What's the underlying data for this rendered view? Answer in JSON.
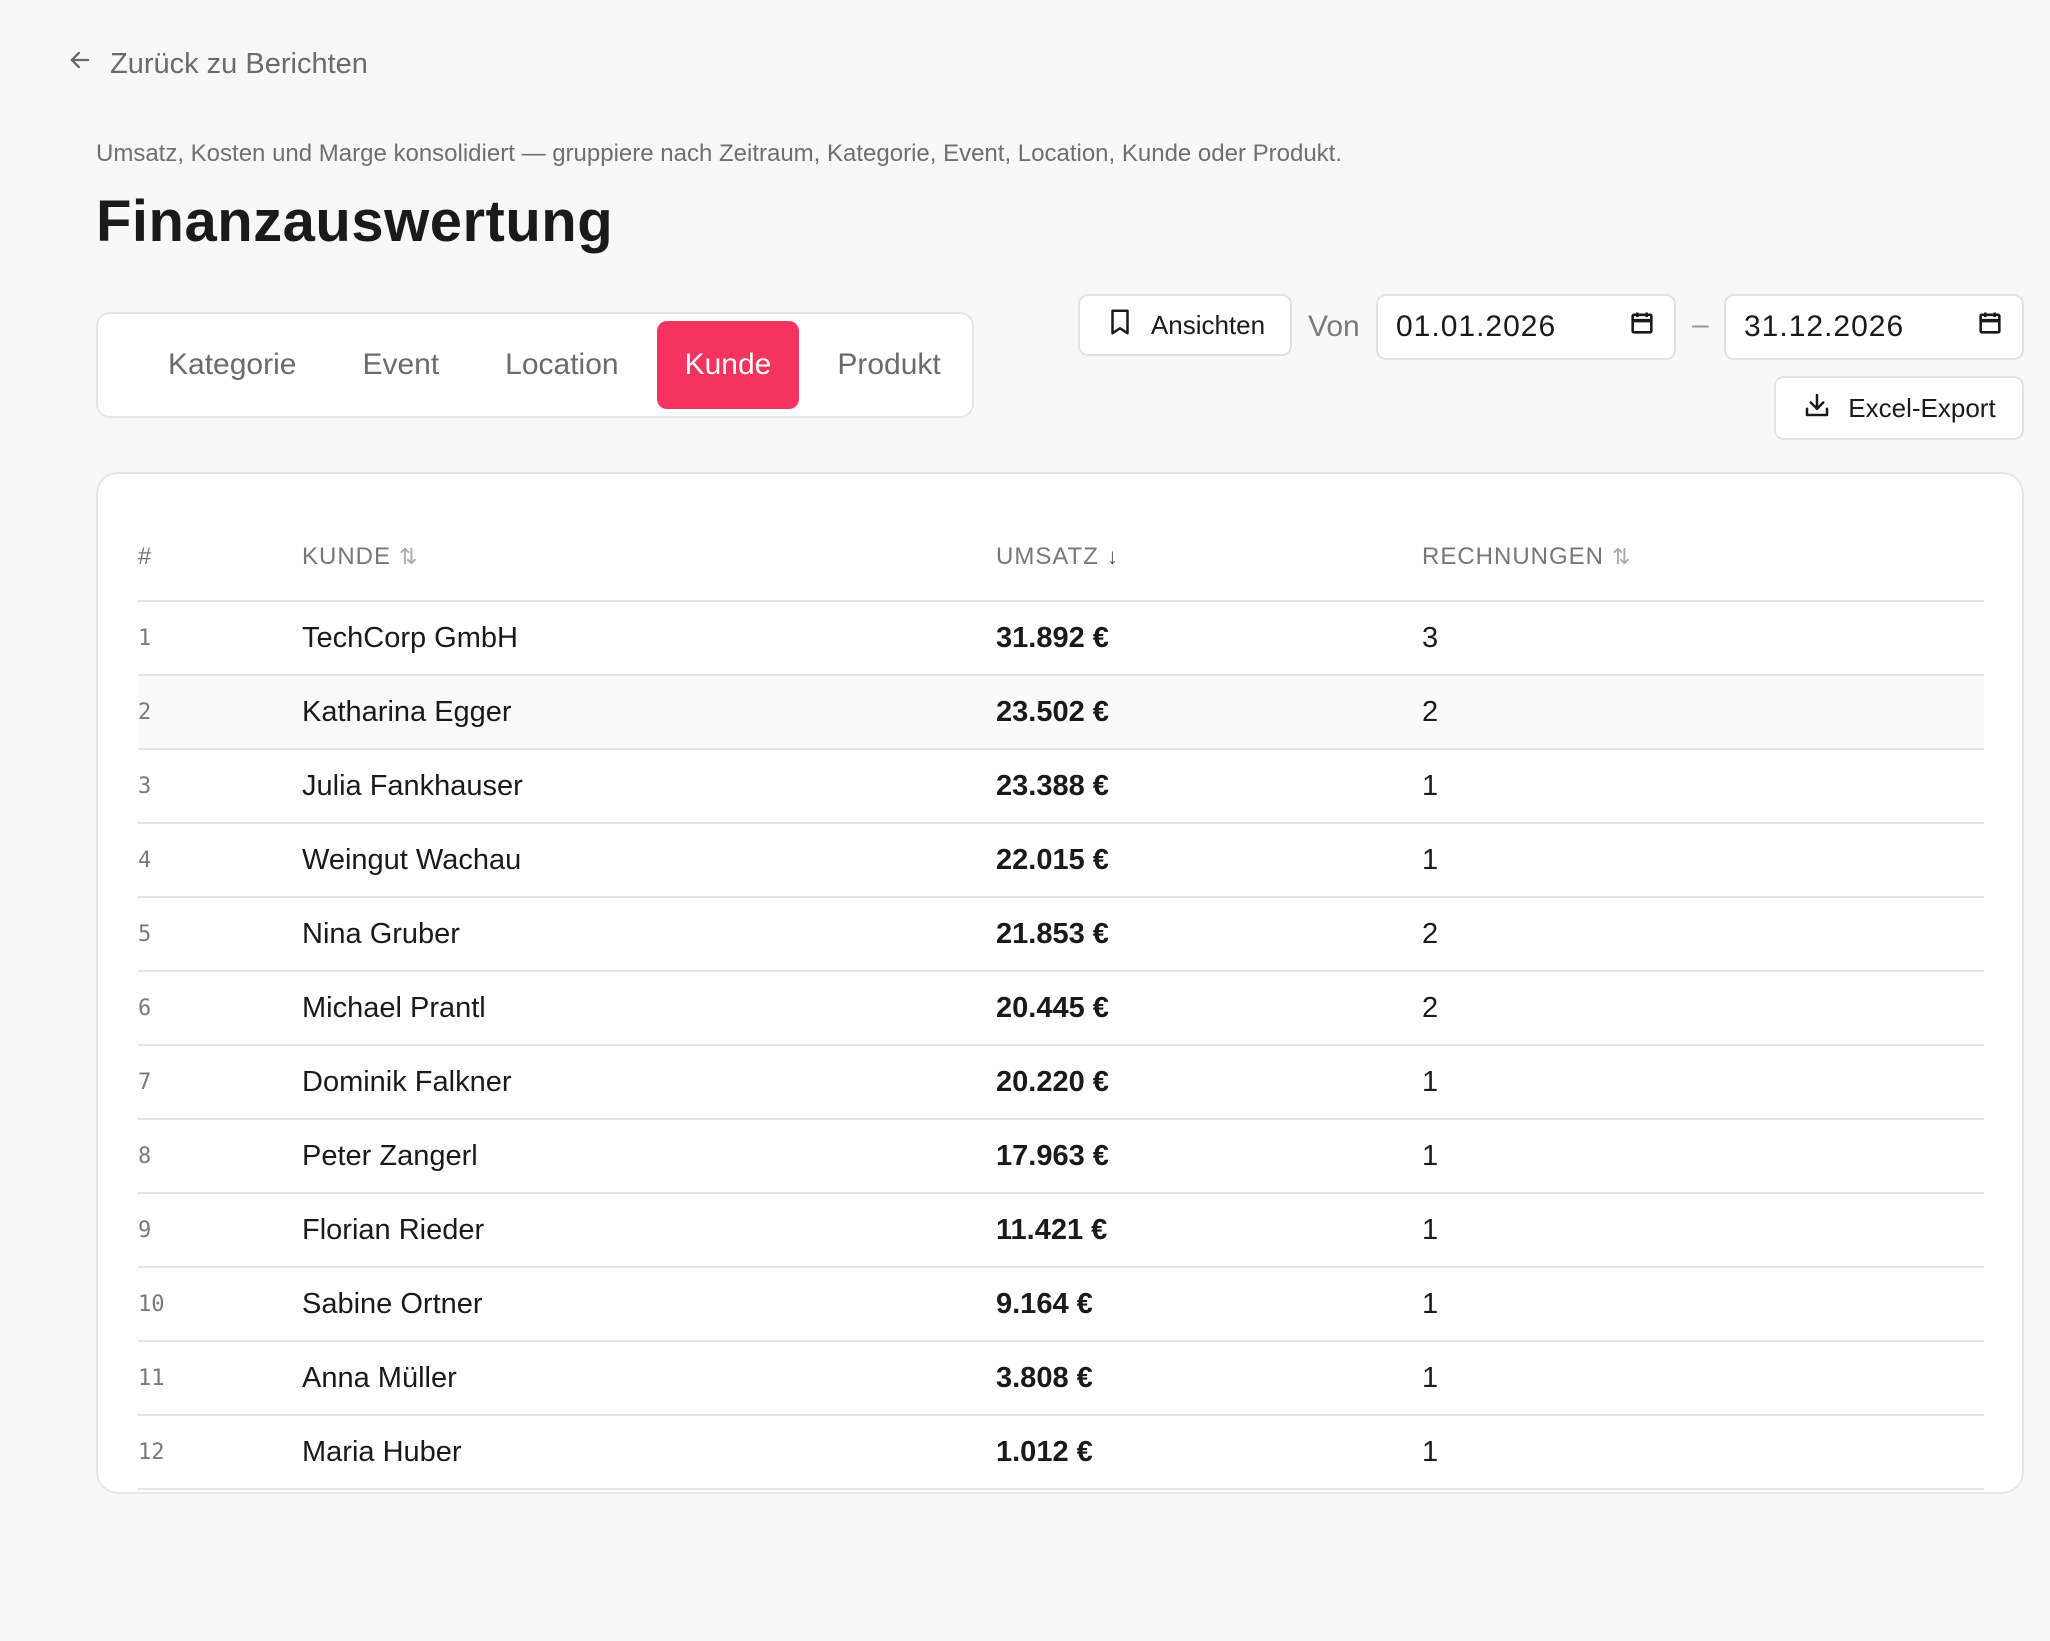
{
  "back": {
    "label": "Zurück zu Berichten"
  },
  "header": {
    "subtitle": "Umsatz, Kosten und Marge konsolidiert — gruppiere nach Zeitraum, Kategorie, Event, Location, Kunde oder Produkt.",
    "title": "Finanzauswertung"
  },
  "tabs": [
    {
      "label": "Kategorie",
      "active": false
    },
    {
      "label": "Event",
      "active": false
    },
    {
      "label": "Location",
      "active": false
    },
    {
      "label": "Kunde",
      "active": true
    },
    {
      "label": "Produkt",
      "active": false
    }
  ],
  "toolbar": {
    "views_label": "Ansichten",
    "von_label": "Von",
    "date_from": "01.01.2026",
    "date_separator": "–",
    "date_to": "31.12.2026",
    "export_label": "Excel-Export"
  },
  "colors": {
    "accent": "#f5335f"
  },
  "table": {
    "columns": [
      {
        "label": "#",
        "sort": "none"
      },
      {
        "label": "KUNDE",
        "sort": "sortable"
      },
      {
        "label": "UMSATZ",
        "sort": "desc"
      },
      {
        "label": "RECHNUNGEN",
        "sort": "sortable"
      }
    ],
    "rows": [
      {
        "n": "1",
        "kunde": "TechCorp GmbH",
        "umsatz": "31.892 €",
        "rechnungen": "3"
      },
      {
        "n": "2",
        "kunde": "Katharina Egger",
        "umsatz": "23.502 €",
        "rechnungen": "2"
      },
      {
        "n": "3",
        "kunde": "Julia Fankhauser",
        "umsatz": "23.388 €",
        "rechnungen": "1"
      },
      {
        "n": "4",
        "kunde": "Weingut Wachau",
        "umsatz": "22.015 €",
        "rechnungen": "1"
      },
      {
        "n": "5",
        "kunde": "Nina Gruber",
        "umsatz": "21.853 €",
        "rechnungen": "2"
      },
      {
        "n": "6",
        "kunde": "Michael Prantl",
        "umsatz": "20.445 €",
        "rechnungen": "2"
      },
      {
        "n": "7",
        "kunde": "Dominik Falkner",
        "umsatz": "20.220 €",
        "rechnungen": "1"
      },
      {
        "n": "8",
        "kunde": "Peter Zangerl",
        "umsatz": "17.963 €",
        "rechnungen": "1"
      },
      {
        "n": "9",
        "kunde": "Florian Rieder",
        "umsatz": "11.421 €",
        "rechnungen": "1"
      },
      {
        "n": "10",
        "kunde": "Sabine Ortner",
        "umsatz": "9.164 €",
        "rechnungen": "1"
      },
      {
        "n": "11",
        "kunde": "Anna Müller",
        "umsatz": "3.808 €",
        "rechnungen": "1"
      },
      {
        "n": "12",
        "kunde": "Maria Huber",
        "umsatz": "1.012 €",
        "rechnungen": "1"
      }
    ]
  }
}
